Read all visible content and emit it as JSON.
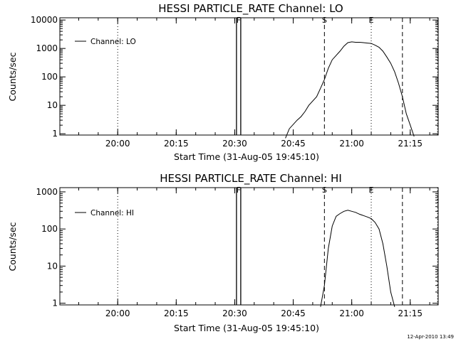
{
  "chart_data": [
    {
      "type": "line",
      "title": "HESSI PARTICLE_RATE Channel: LO",
      "xlabel": "Start Time (31-Aug-05 19:45:10)",
      "ylabel": "Counts/sec",
      "yscale": "log",
      "ylim": [
        0.9,
        12000
      ],
      "xlim_minutes_from_start": [
        0,
        97
      ],
      "xticks": [
        "20:00",
        "20:15",
        "20:30",
        "20:45",
        "21:00",
        "21:15"
      ],
      "yticks": [
        "1",
        "10",
        "100",
        "1000",
        "10000"
      ],
      "legend": {
        "position": "top-left",
        "entries": [
          "Channel: LO"
        ]
      },
      "markers": [
        {
          "label": "F",
          "x": "20:31",
          "style": "solid"
        },
        {
          "label": "S",
          "x": "20:53",
          "style": "dashed"
        },
        {
          "label": "E",
          "x": "21:05",
          "style": "none"
        }
      ],
      "reference_lines": [
        {
          "x": "20:00",
          "style": "dotted"
        },
        {
          "x": "20:53",
          "style": "dashed"
        },
        {
          "x": "21:05",
          "style": "dotted"
        },
        {
          "x": "21:13",
          "style": "dashed"
        },
        {
          "x": "21:22",
          "style": "dotted"
        }
      ],
      "series": [
        {
          "name": "Channel: LO",
          "x": [
            "20:43",
            "20:44",
            "20:46",
            "20:47",
            "20:48",
            "20:49",
            "20:51",
            "20:52",
            "20:53",
            "20:54",
            "20:55",
            "20:57",
            "20:58",
            "20:59",
            "21:00",
            "21:01",
            "21:02",
            "21:03",
            "21:04",
            "21:05",
            "21:06",
            "21:07",
            "21:08",
            "21:09",
            "21:10",
            "21:11",
            "21:12",
            "21:13",
            "21:14",
            "21:15",
            "21:16"
          ],
          "y": [
            0.7,
            1.5,
            3,
            4,
            6,
            10,
            20,
            40,
            80,
            200,
            400,
            800,
            1200,
            1600,
            1700,
            1650,
            1650,
            1600,
            1550,
            1500,
            1300,
            1100,
            800,
            500,
            300,
            150,
            60,
            20,
            5,
            2,
            0.8
          ]
        }
      ]
    },
    {
      "type": "line",
      "title": "HESSI PARTICLE_RATE Channel: HI",
      "xlabel": "Start Time (31-Aug-05 19:45:10)",
      "ylabel": "Counts/sec",
      "yscale": "log",
      "ylim": [
        0.9,
        1300
      ],
      "xlim_minutes_from_start": [
        0,
        97
      ],
      "xticks": [
        "20:00",
        "20:15",
        "20:30",
        "20:45",
        "21:00",
        "21:15"
      ],
      "yticks": [
        "1",
        "10",
        "100",
        "1000"
      ],
      "legend": {
        "position": "top-left",
        "entries": [
          "Channel: HI"
        ]
      },
      "markers": [
        {
          "label": "F",
          "x": "20:31",
          "style": "solid"
        },
        {
          "label": "S",
          "x": "20:53",
          "style": "dashed"
        },
        {
          "label": "E",
          "x": "21:05",
          "style": "none"
        }
      ],
      "reference_lines": [
        {
          "x": "20:00",
          "style": "dotted"
        },
        {
          "x": "20:53",
          "style": "dashed"
        },
        {
          "x": "21:05",
          "style": "dotted"
        },
        {
          "x": "21:13",
          "style": "dashed"
        },
        {
          "x": "21:22",
          "style": "dotted"
        }
      ],
      "series": [
        {
          "name": "Channel: HI",
          "x": [
            "20:52",
            "20:53",
            "20:54",
            "20:55",
            "20:56",
            "20:57",
            "20:58",
            "20:59",
            "21:00",
            "21:01",
            "21:02",
            "21:03",
            "21:04",
            "21:05",
            "21:06",
            "21:07",
            "21:08",
            "21:09",
            "21:10",
            "21:11"
          ],
          "y": [
            0.8,
            3,
            30,
            120,
            220,
            260,
            300,
            320,
            300,
            280,
            250,
            230,
            210,
            190,
            150,
            100,
            40,
            10,
            2,
            0.8
          ]
        }
      ]
    }
  ],
  "footer_timestamp": "12-Apr-2010 13:49"
}
